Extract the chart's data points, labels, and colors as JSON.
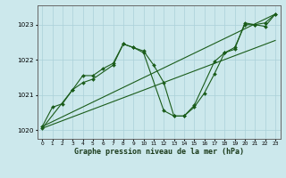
{
  "xlabel": "Graphe pression niveau de la mer (hPa)",
  "bg_color": "#cce8ec",
  "grid_color": "#aad0d8",
  "line_color": "#1a5c1a",
  "xlim": [
    -0.5,
    23.5
  ],
  "ylim": [
    1019.75,
    1023.55
  ],
  "yticks": [
    1020,
    1021,
    1022,
    1023
  ],
  "xticks": [
    0,
    1,
    2,
    3,
    4,
    5,
    6,
    7,
    8,
    9,
    10,
    11,
    12,
    13,
    14,
    15,
    16,
    17,
    18,
    19,
    20,
    21,
    22,
    23
  ],
  "series_main": {
    "x": [
      0,
      1,
      2,
      3,
      4,
      5,
      6,
      7,
      8,
      9,
      10,
      11,
      12,
      13,
      14,
      15,
      16,
      17,
      18,
      19,
      20,
      21,
      22,
      23
    ],
    "y": [
      1020.1,
      1020.65,
      1020.75,
      1021.15,
      1021.55,
      1021.55,
      1021.75,
      1021.9,
      1022.45,
      1022.35,
      1022.25,
      1021.85,
      1021.35,
      1020.4,
      1020.4,
      1020.65,
      1021.05,
      1021.6,
      1022.2,
      1022.35,
      1023.0,
      1023.0,
      1023.05,
      1023.3
    ]
  },
  "series_alt": {
    "x": [
      0,
      3,
      4,
      5,
      7,
      8,
      9,
      10,
      12,
      13,
      14,
      15,
      17,
      18,
      19,
      20,
      21,
      22,
      23
    ],
    "y": [
      1020.05,
      1021.15,
      1021.35,
      1021.45,
      1021.85,
      1022.45,
      1022.35,
      1022.2,
      1020.55,
      1020.4,
      1020.4,
      1020.7,
      1021.95,
      1022.2,
      1022.3,
      1023.05,
      1023.0,
      1022.95,
      1023.3
    ]
  },
  "line1_x": [
    0,
    23
  ],
  "line1_y": [
    1020.05,
    1022.55
  ],
  "line2_x": [
    0,
    23
  ],
  "line2_y": [
    1020.1,
    1023.3
  ]
}
